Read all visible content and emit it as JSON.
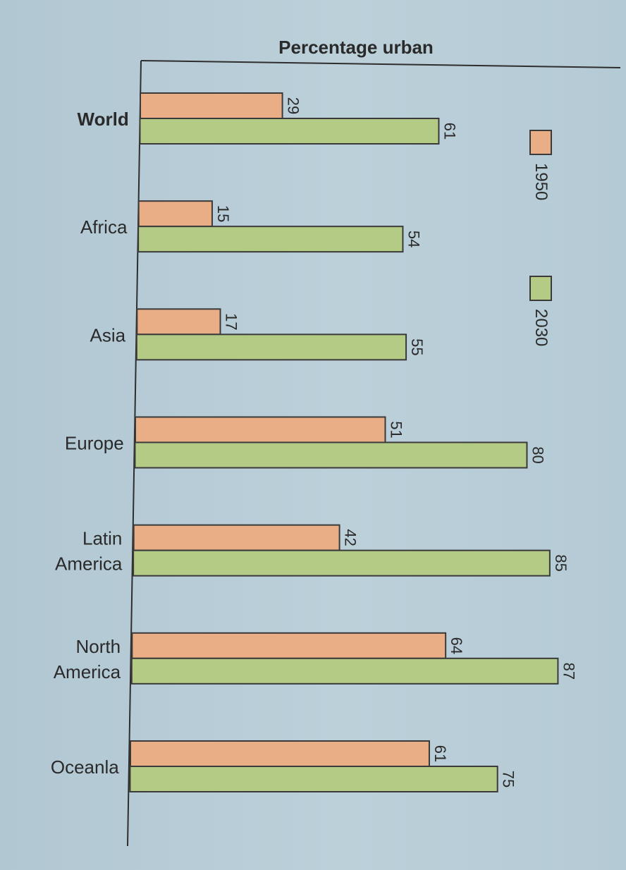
{
  "chart_data": {
    "type": "bar",
    "orientation": "horizontal",
    "title": "Percentage urban",
    "categories": [
      "World",
      "Africa",
      "Asia",
      "Europe",
      "Latin\nAmerica",
      "North\nAmerica",
      "Oceanla"
    ],
    "series": [
      {
        "name": "1950",
        "values": [
          29,
          15,
          17,
          51,
          42,
          64,
          61
        ],
        "color": "#e9ae86"
      },
      {
        "name": "2030",
        "values": [
          61,
          54,
          55,
          80,
          85,
          87,
          75
        ],
        "color": "#b4cb86"
      }
    ],
    "xlim": [
      0,
      100
    ],
    "legend_position": "right",
    "grid": false
  }
}
